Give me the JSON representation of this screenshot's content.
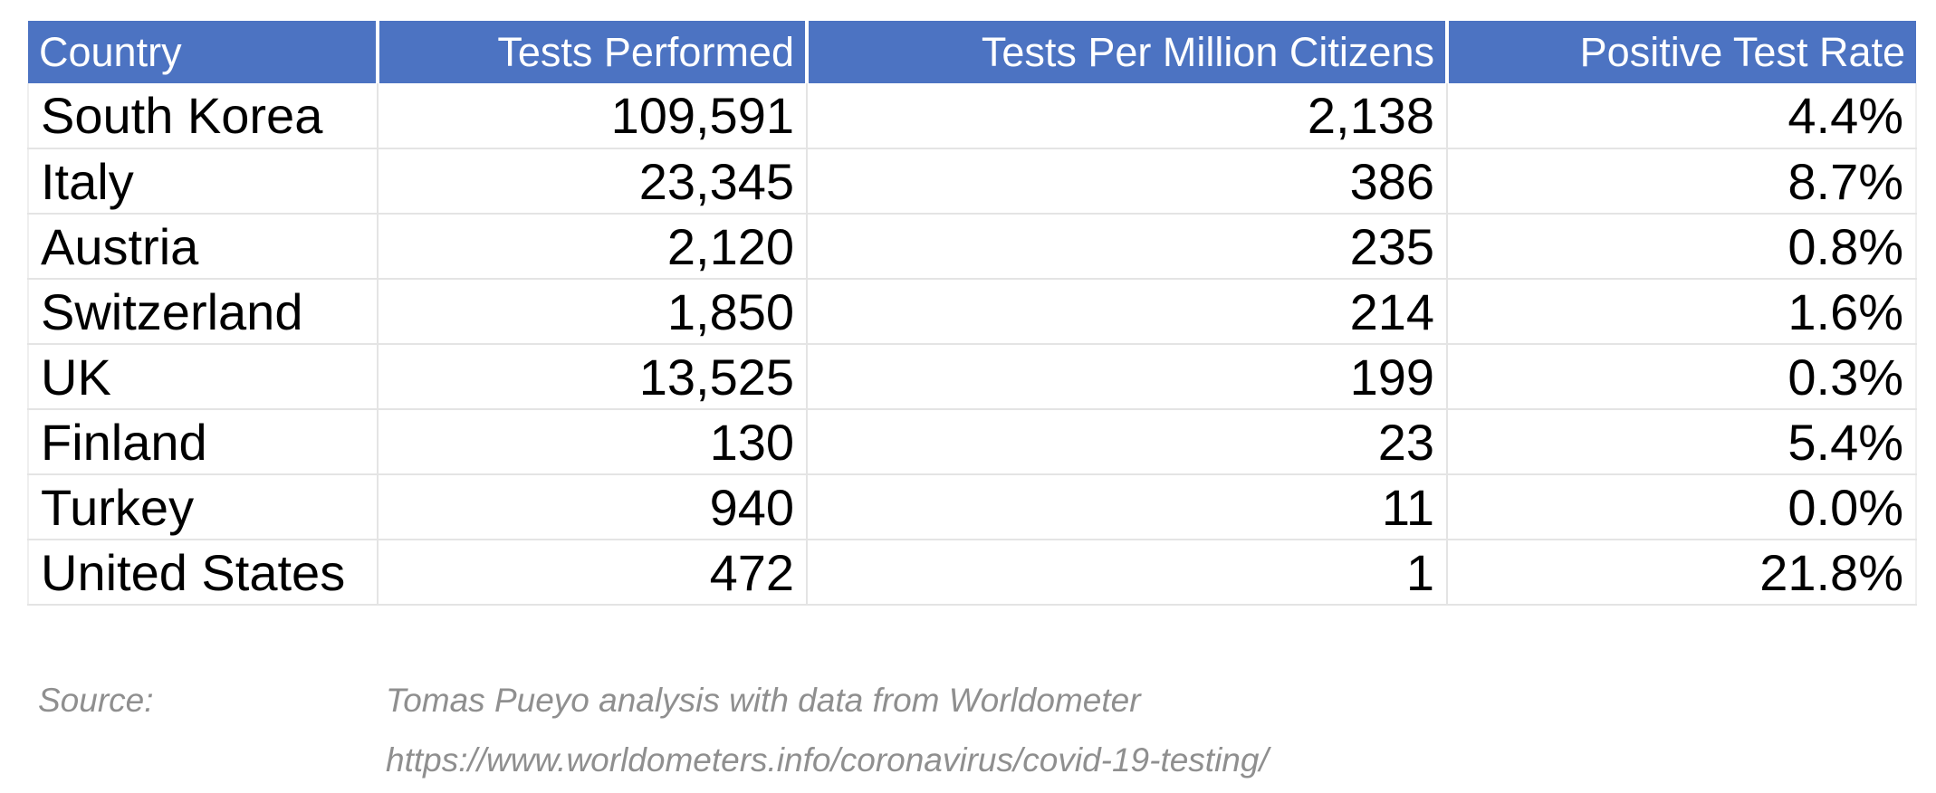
{
  "table": {
    "headers": {
      "country": "Country",
      "tests_performed": "Tests Performed",
      "tests_per_million": "Tests Per Million Citizens",
      "positive_rate": "Positive Test Rate"
    },
    "rows": [
      {
        "country": "South Korea",
        "tests_performed": "109,591",
        "tests_per_million": "2,138",
        "positive_rate": "4.4%"
      },
      {
        "country": "Italy",
        "tests_performed": "23,345",
        "tests_per_million": "386",
        "positive_rate": "8.7%"
      },
      {
        "country": "Austria",
        "tests_performed": "2,120",
        "tests_per_million": "235",
        "positive_rate": "0.8%"
      },
      {
        "country": "Switzerland",
        "tests_performed": "1,850",
        "tests_per_million": "214",
        "positive_rate": "1.6%"
      },
      {
        "country": "UK",
        "tests_performed": "13,525",
        "tests_per_million": "199",
        "positive_rate": "0.3%"
      },
      {
        "country": "Finland",
        "tests_performed": "130",
        "tests_per_million": "23",
        "positive_rate": "5.4%"
      },
      {
        "country": "Turkey",
        "tests_performed": "940",
        "tests_per_million": "11",
        "positive_rate": "0.0%"
      },
      {
        "country": "United States",
        "tests_performed": "472",
        "tests_per_million": "1",
        "positive_rate": "21.8%"
      }
    ]
  },
  "footer": {
    "source_label": "Source:",
    "attribution": "Tomas Pueyo analysis with data from Worldometer",
    "url": "https://www.worldometers.info/coronavirus/covid-19-testing/"
  },
  "colors": {
    "header_bg": "#4C73C2",
    "header_text": "#FFFFFF",
    "body_text": "#000000",
    "grid_line": "#E4E4E4",
    "footer_text": "#8F8F8F"
  },
  "chart_data": {
    "type": "table",
    "columns": [
      "Country",
      "Tests Performed",
      "Tests Per Million Citizens",
      "Positive Test Rate"
    ],
    "rows": [
      [
        "South Korea",
        109591,
        2138,
        "4.4%"
      ],
      [
        "Italy",
        23345,
        386,
        "8.7%"
      ],
      [
        "Austria",
        2120,
        235,
        "0.8%"
      ],
      [
        "Switzerland",
        1850,
        214,
        "1.6%"
      ],
      [
        "UK",
        13525,
        199,
        "0.3%"
      ],
      [
        "Finland",
        130,
        23,
        "5.4%"
      ],
      [
        "Turkey",
        940,
        11,
        "0.0%"
      ],
      [
        "United States",
        472,
        1,
        "21.8%"
      ]
    ],
    "source": "Tomas Pueyo analysis with data from Worldometer",
    "source_url": "https://www.worldometers.info/coronavirus/covid-19-testing/",
    "layout": {
      "header_style": "blue-banner",
      "grid": "light-gray",
      "numeric_alignment": "right"
    }
  }
}
